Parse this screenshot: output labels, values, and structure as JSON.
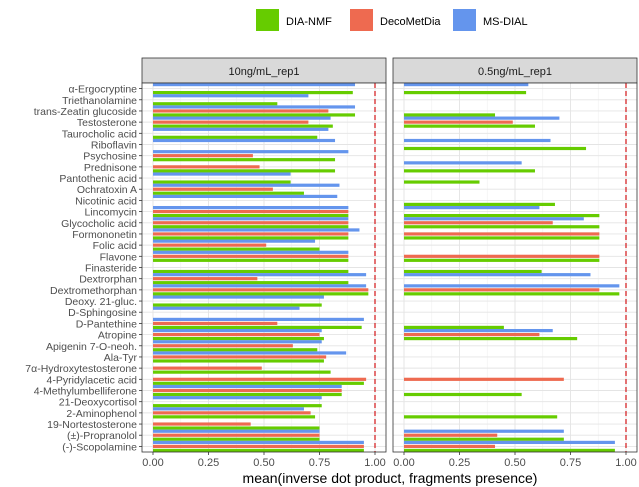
{
  "chart_data": {
    "type": "bar",
    "orientation": "horizontal",
    "xlabel": "mean(inverse dot product, fragments presence)",
    "xlim": [
      0,
      1
    ],
    "xticks": [
      "0.00",
      "0.25",
      "0.50",
      "0.75",
      "1.00"
    ],
    "reference_line": {
      "x": 1.0,
      "color": "#d62728",
      "style": "dashed"
    },
    "legend": {
      "position": "top",
      "entries": [
        {
          "name": "DIA-NMF",
          "color": "#66cc00"
        },
        {
          "name": "DecoMetDia",
          "color": "#ee6a50"
        },
        {
          "name": "MS-DIAL",
          "color": "#6495ed"
        }
      ]
    },
    "categories": [
      "α-Ergocryptine",
      "Triethanolamine",
      "trans-Zeatin glucoside",
      "Testosterone",
      "Taurocholic acid",
      "Riboflavin",
      "Psychosine",
      "Prednisone",
      "Pantothenic acid",
      "Ochratoxin A",
      "Nicotinic acid",
      "Lincomycin",
      "Glycocholic acid",
      "Formononetin",
      "Folic acid",
      "Flavone",
      "Finasteride",
      "Dextrorphan",
      "Dextromethorphan",
      "Deoxy. 21-gluc.",
      "D-Sphingosine",
      "D-Pantethine",
      "Atropine",
      "Apigenin 7-O-neoh.",
      "Ala-Tyr",
      "7α-Hydroxytestosterone",
      "4-Pyridylacetic acid",
      "4-Methylumbelliferone",
      "21-Deoxycortisol",
      "2-Aminophenol",
      "19-Nortestosterone",
      "(±)-Propranolol",
      "(-)-Scopolamine"
    ],
    "panels": [
      {
        "title": "10ng/mL_rep1",
        "series": [
          {
            "name": "DIA-NMF",
            "values": [
              0.9,
              0.56,
              0.91,
              0.81,
              0.74,
              0.0,
              0.82,
              0.82,
              0.62,
              0.68,
              0.0,
              0.88,
              0.88,
              0.88,
              0.75,
              0.88,
              0.88,
              0.88,
              0.97,
              0.76,
              0.0,
              0.94,
              0.77,
              0.74,
              0.77,
              0.8,
              0.95,
              0.85,
              0.76,
              0.73,
              0.75,
              0.75,
              0.95
            ]
          },
          {
            "name": "DecoMetDia",
            "values": [
              0.0,
              0.0,
              0.79,
              0.7,
              0.0,
              0.0,
              0.45,
              0.48,
              0.0,
              0.54,
              0.0,
              0.88,
              0.88,
              0.88,
              0.51,
              0.88,
              0.0,
              0.47,
              0.97,
              0.0,
              0.0,
              0.56,
              0.75,
              0.63,
              0.78,
              0.49,
              0.96,
              0.85,
              0.0,
              0.71,
              0.44,
              0.75,
              0.95
            ]
          },
          {
            "name": "MS-DIAL",
            "values": [
              0.91,
              0.7,
              0.91,
              0.8,
              0.79,
              0.82,
              0.88,
              0.0,
              0.62,
              0.84,
              0.83,
              0.88,
              0.88,
              0.93,
              0.73,
              0.88,
              0.0,
              0.96,
              0.96,
              0.77,
              0.66,
              0.95,
              0.76,
              0.76,
              0.87,
              0.0,
              0.0,
              0.85,
              0.76,
              0.68,
              0.0,
              0.75,
              0.95
            ]
          }
        ]
      },
      {
        "title": "0.5ng/mL_rep1",
        "series": [
          {
            "name": "DIA-NMF",
            "values": [
              0.55,
              0.0,
              0.41,
              0.59,
              0.0,
              0.82,
              0.0,
              0.59,
              0.34,
              0.0,
              0.68,
              0.88,
              0.88,
              0.88,
              0.0,
              0.88,
              0.62,
              0.0,
              0.97,
              0.0,
              0.0,
              0.45,
              0.78,
              0.0,
              0.0,
              0.0,
              0.0,
              0.53,
              0.0,
              0.69,
              0.0,
              0.72,
              0.95
            ]
          },
          {
            "name": "DecoMetDia",
            "values": [
              0.0,
              0.0,
              0.0,
              0.49,
              0.0,
              0.0,
              0.0,
              0.0,
              0.0,
              0.0,
              0.0,
              0.0,
              0.67,
              0.88,
              0.0,
              0.88,
              0.0,
              0.0,
              0.88,
              0.0,
              0.0,
              0.0,
              0.61,
              0.0,
              0.0,
              0.0,
              0.72,
              0.0,
              0.0,
              0.0,
              0.0,
              0.42,
              0.41
            ]
          },
          {
            "name": "MS-DIAL",
            "values": [
              0.56,
              0.0,
              0.0,
              0.7,
              0.0,
              0.66,
              0.0,
              0.53,
              0.0,
              0.0,
              0.0,
              0.61,
              0.81,
              0.0,
              0.0,
              0.0,
              0.0,
              0.84,
              0.97,
              0.0,
              0.0,
              0.0,
              0.67,
              0.0,
              0.0,
              0.0,
              0.0,
              0.0,
              0.0,
              0.0,
              0.0,
              0.72,
              0.95
            ]
          }
        ]
      }
    ]
  }
}
